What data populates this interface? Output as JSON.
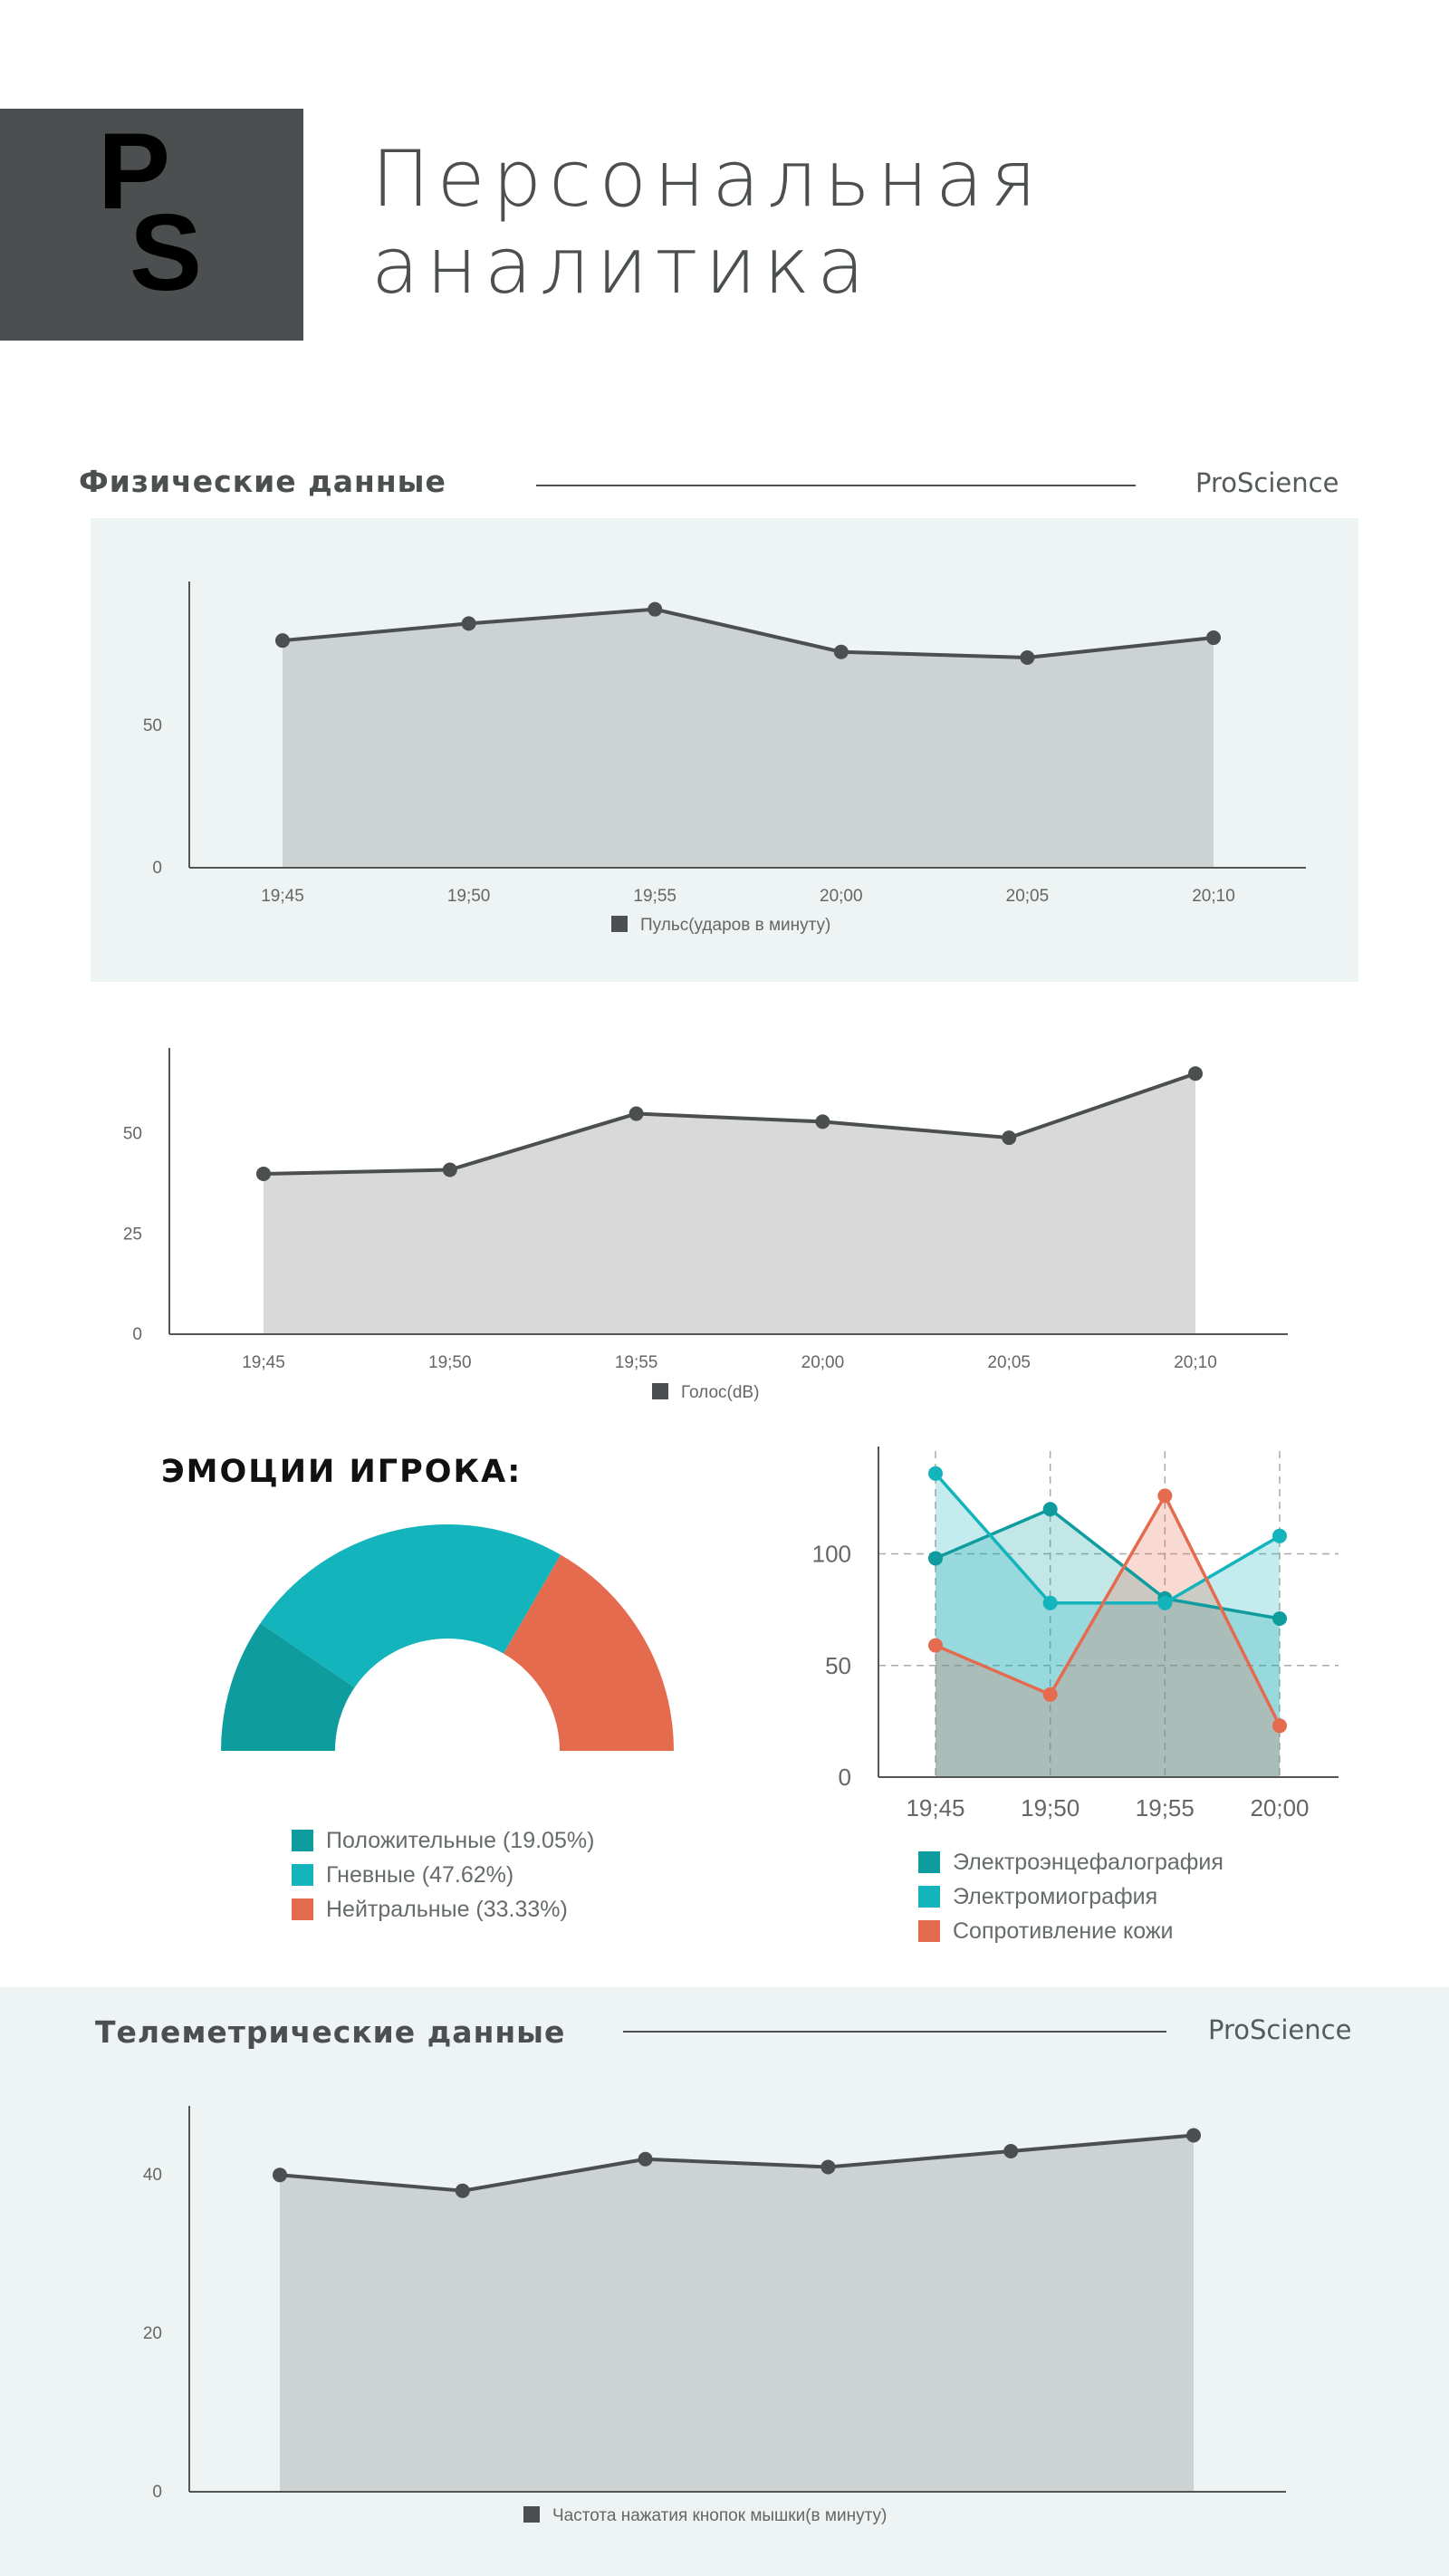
{
  "header": {
    "logo_text": "PS",
    "title_line1": "Персональная",
    "title_line2": "аналитика"
  },
  "section_physical": {
    "title": "Физические данные",
    "brand": "ProScience"
  },
  "section_emotions": {
    "title": "ЭМОЦИИ ИГРОКА:"
  },
  "section_telemetry": {
    "title": "Телеметрические данные",
    "brand": "ProScience"
  },
  "colors": {
    "dark": "#4b4f4f",
    "area_grey": "#cdd2d2",
    "area_grey2": "#d9d9d9",
    "teal_dark": "#0e9c9e",
    "teal": "#13b4bb",
    "orange": "#e56b4e",
    "panel": "#eef3f3"
  },
  "chart_data": [
    {
      "id": "pulse",
      "type": "area",
      "categories": [
        "19;45",
        "19;50",
        "19;55",
        "20;00",
        "20;05",
        "20;10"
      ],
      "series": [
        {
          "name": "Пульс(ударов в минуту)",
          "values": [
            80,
            86,
            91,
            76,
            74,
            81
          ]
        }
      ],
      "yticks": [
        "0",
        "50"
      ],
      "ylim": [
        0,
        96
      ],
      "legend": "bottom"
    },
    {
      "id": "voice",
      "type": "area",
      "categories": [
        "19;45",
        "19;50",
        "19;55",
        "20;00",
        "20;05",
        "20;10"
      ],
      "series": [
        {
          "name": "Голос(dB)",
          "values": [
            40,
            41,
            55,
            53,
            49,
            65
          ]
        }
      ],
      "yticks": [
        "0",
        "25",
        "50"
      ],
      "ylim": [
        0,
        68
      ],
      "legend": "bottom"
    },
    {
      "id": "emotions",
      "type": "pie",
      "subtype": "semi-donut",
      "series": [
        {
          "name": "Положительные",
          "value": 19.05,
          "label": "Положительные (19.05%)"
        },
        {
          "name": "Гневные",
          "value": 47.62,
          "label": "Гневные (47.62%)"
        },
        {
          "name": "Нейтральные",
          "value": 33.33,
          "label": "Нейтральные (33.33%)"
        }
      ],
      "legend": "bottom"
    },
    {
      "id": "biometrics",
      "type": "area",
      "categories": [
        "19;45",
        "19;50",
        "19;55",
        "20;00"
      ],
      "series": [
        {
          "name": "Электроэнцефалография",
          "values": [
            98,
            120,
            80,
            71
          ]
        },
        {
          "name": "Электромиография",
          "values": [
            136,
            78,
            78,
            108
          ]
        },
        {
          "name": "Сопротивление кожи",
          "values": [
            59,
            37,
            126,
            23
          ]
        }
      ],
      "yticks": [
        "0",
        "50",
        "100"
      ],
      "ylim": [
        0,
        142
      ],
      "grid": true,
      "legend": "bottom"
    },
    {
      "id": "clicks",
      "type": "area",
      "categories": [
        "",
        "",
        "",
        "",
        "",
        ""
      ],
      "series": [
        {
          "name": "Частота нажатия кнопок мышки(в минуту)",
          "values": [
            40,
            38,
            42,
            41,
            43,
            45
          ]
        }
      ],
      "yticks": [
        "0",
        "20",
        "40"
      ],
      "ylim": [
        0,
        47
      ],
      "legend": "bottom"
    }
  ]
}
